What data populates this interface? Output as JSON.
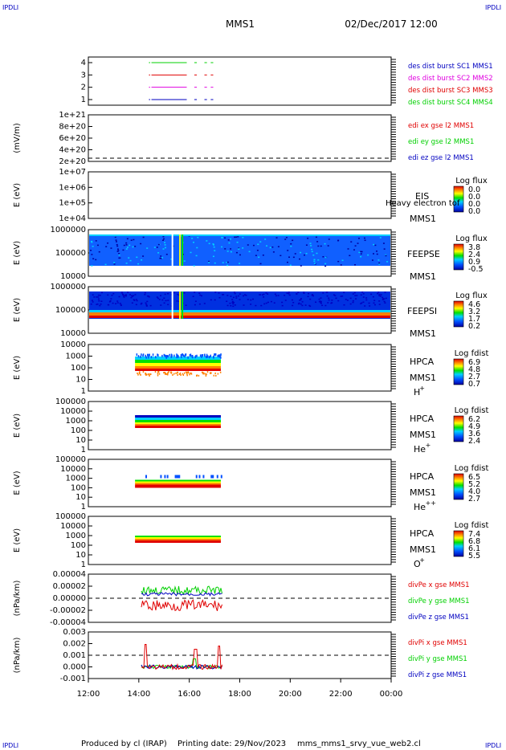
{
  "header": {
    "corner_tl": "IPDLI",
    "corner_tr": "IPDLI",
    "corner_bl": "IPDLI",
    "corner_br": "IPDLI",
    "title": "MMS1",
    "datetime": "02/Dec/2017 12:00"
  },
  "footer": {
    "produced": "Produced by cl (IRAP)",
    "printing": "Printing date: 29/Nov/2023",
    "file": "mms_mms1_srvy_vue_web2.cl"
  },
  "colors": {
    "red": "#e00000",
    "green": "#00d000",
    "blue": "#0000c0",
    "magenta": "#e000e0"
  },
  "chart_data": [
    {
      "id": "p1",
      "type": "line",
      "ylabel": "",
      "yticks": [
        "1",
        "2",
        "3",
        "4"
      ],
      "legend": [
        {
          "text": "des dist burst SC1 MMS1",
          "color": "#0000c0"
        },
        {
          "text": "des dist burst SC2 MMS2",
          "color": "#e000e0"
        },
        {
          "text": "des dist burst SC3 MMS3",
          "color": "#e00000"
        },
        {
          "text": "des dist burst SC4 MMS4",
          "color": "#00d000"
        }
      ],
      "series": [
        {
          "level": 1,
          "color": "#0000c0",
          "segments": [
            [
              14.4,
              14.45
            ],
            [
              14.5,
              15.9
            ],
            [
              16.2,
              16.3
            ],
            [
              16.6,
              16.7
            ],
            [
              16.85,
              16.95
            ]
          ]
        },
        {
          "level": 2,
          "color": "#e000e0",
          "segments": [
            [
              14.4,
              14.45
            ],
            [
              14.5,
              15.9
            ],
            [
              16.2,
              16.3
            ],
            [
              16.6,
              16.7
            ],
            [
              16.85,
              16.95
            ]
          ]
        },
        {
          "level": 3,
          "color": "#e00000",
          "segments": [
            [
              14.4,
              14.45
            ],
            [
              14.5,
              15.9
            ],
            [
              16.2,
              16.3
            ],
            [
              16.6,
              16.7
            ],
            [
              16.85,
              16.95
            ]
          ]
        },
        {
          "level": 4,
          "color": "#00d000",
          "segments": [
            [
              14.4,
              14.45
            ],
            [
              14.5,
              15.9
            ],
            [
              16.2,
              16.3
            ],
            [
              16.6,
              16.7
            ],
            [
              16.85,
              16.95
            ]
          ]
        }
      ]
    },
    {
      "id": "p2",
      "type": "line",
      "ylabel": "(mV/m)",
      "yticks": [
        "2e+20",
        "4e+20",
        "6e+20",
        "8e+20",
        "1e+21"
      ],
      "legend": [
        {
          "text": "edi ex gse l2 MMS1",
          "color": "#e00000"
        },
        {
          "text": "edi ey gse l2 MMS1",
          "color": "#00d000"
        },
        {
          "text": "edi ez gse l2 MMS1",
          "color": "#0000c0"
        }
      ],
      "zero_line": true
    },
    {
      "id": "p3",
      "type": "heatmap",
      "ylabel": "E (eV)",
      "yticks": [
        "1e+04",
        "1e+05",
        "1e+06",
        "1e+07"
      ],
      "instrument": "EIS",
      "instrument_note": "Heavy electron tof",
      "spacecraft": "MMS1",
      "cbar_title": "Log flux",
      "cbar_ticks": [
        "0.0",
        "0.0",
        "0.0",
        "0.0"
      ]
    },
    {
      "id": "p4",
      "type": "heatmap",
      "ylabel": "E (eV)",
      "yticks": [
        "10000",
        "100000",
        "1000000"
      ],
      "instrument": "FEEPSE",
      "spacecraft": "MMS1",
      "cbar_title": "Log flux",
      "cbar_ticks": [
        "3.8",
        "2.4",
        "0.9",
        "-0.5"
      ]
    },
    {
      "id": "p5",
      "type": "heatmap",
      "ylabel": "E (eV)",
      "yticks": [
        "10000",
        "100000",
        "1000000"
      ],
      "instrument": "FEEPSI",
      "spacecraft": "MMS1",
      "cbar_title": "Log flux",
      "cbar_ticks": [
        "4.6",
        "3.2",
        "1.7",
        "0.2"
      ]
    },
    {
      "id": "p6",
      "type": "heatmap",
      "ylabel": "E (eV)",
      "yticks": [
        "1",
        "10",
        "100",
        "1000",
        "10000"
      ],
      "instrument": "HPCA",
      "spacecraft": "MMS1",
      "species": "H",
      "species_sup": "+",
      "cbar_title": "Log fdist",
      "cbar_ticks": [
        "6.9",
        "4.8",
        "2.7",
        "0.7"
      ]
    },
    {
      "id": "p7",
      "type": "heatmap",
      "ylabel": "E (eV)",
      "yticks": [
        "1",
        "10",
        "100",
        "1000",
        "10000",
        "100000"
      ],
      "instrument": "HPCA",
      "spacecraft": "MMS1",
      "species": "He",
      "species_sup": "+",
      "cbar_title": "Log fdist",
      "cbar_ticks": [
        "6.2",
        "4.9",
        "3.6",
        "2.4"
      ]
    },
    {
      "id": "p8",
      "type": "heatmap",
      "ylabel": "E (eV)",
      "yticks": [
        "1",
        "10",
        "100",
        "1000",
        "10000",
        "100000"
      ],
      "instrument": "HPCA",
      "spacecraft": "MMS1",
      "species": "He",
      "species_sup": "++",
      "cbar_title": "Log fdist",
      "cbar_ticks": [
        "6.5",
        "5.2",
        "4.0",
        "2.7"
      ]
    },
    {
      "id": "p9",
      "type": "heatmap",
      "ylabel": "E (eV)",
      "yticks": [
        "1",
        "10",
        "100",
        "1000",
        "10000",
        "100000"
      ],
      "instrument": "HPCA",
      "spacecraft": "MMS1",
      "species": "O",
      "species_sup": "+",
      "cbar_title": "Log fdist",
      "cbar_ticks": [
        "7.4",
        "6.8",
        "6.1",
        "5.5"
      ]
    },
    {
      "id": "p10",
      "type": "line",
      "ylabel": "(nPa/km)",
      "yticks": [
        "-0.00004",
        "-0.00002",
        "0.00000",
        "0.00002",
        "0.00004"
      ],
      "legend": [
        {
          "text": "divPe x gse MMS1",
          "color": "#e00000"
        },
        {
          "text": "divPe y gse MMS1",
          "color": "#00d000"
        },
        {
          "text": "divPe z gse MMS1",
          "color": "#0000c0"
        }
      ],
      "zero_line": true
    },
    {
      "id": "p11",
      "type": "line",
      "ylabel": "(nPa/km)",
      "yticks": [
        "-0.001",
        "0.000",
        "0.001",
        "0.002",
        "0.003"
      ],
      "legend": [
        {
          "text": "divPi x gse MMS1",
          "color": "#e00000"
        },
        {
          "text": "divPi y gse MMS1",
          "color": "#00d000"
        },
        {
          "text": "divPi z gse MMS1",
          "color": "#0000c0"
        }
      ],
      "zero_line": true
    }
  ],
  "xaxis": {
    "ticks": [
      "12:00",
      "14:00",
      "16:00",
      "18:00",
      "20:00",
      "22:00",
      "00:00"
    ],
    "range_hours": [
      12,
      24
    ]
  }
}
